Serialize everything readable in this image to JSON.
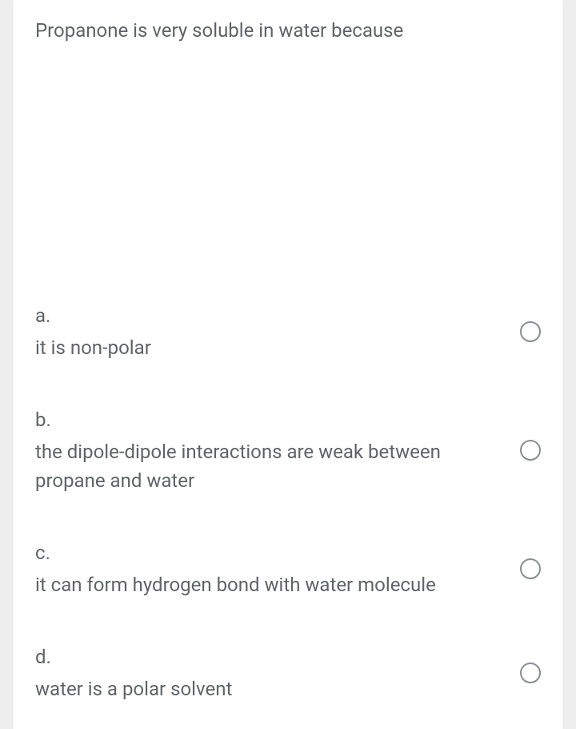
{
  "question": "Propanone is very soluble in water because",
  "options": [
    {
      "letter": "a.",
      "text": "it is non-polar"
    },
    {
      "letter": "b.",
      "text": "the dipole-dipole interactions are weak between propane and water"
    },
    {
      "letter": "c.",
      "text": "it can form hydrogen bond with water molecule"
    },
    {
      "letter": "d.",
      "text": "water is a polar solvent"
    }
  ]
}
